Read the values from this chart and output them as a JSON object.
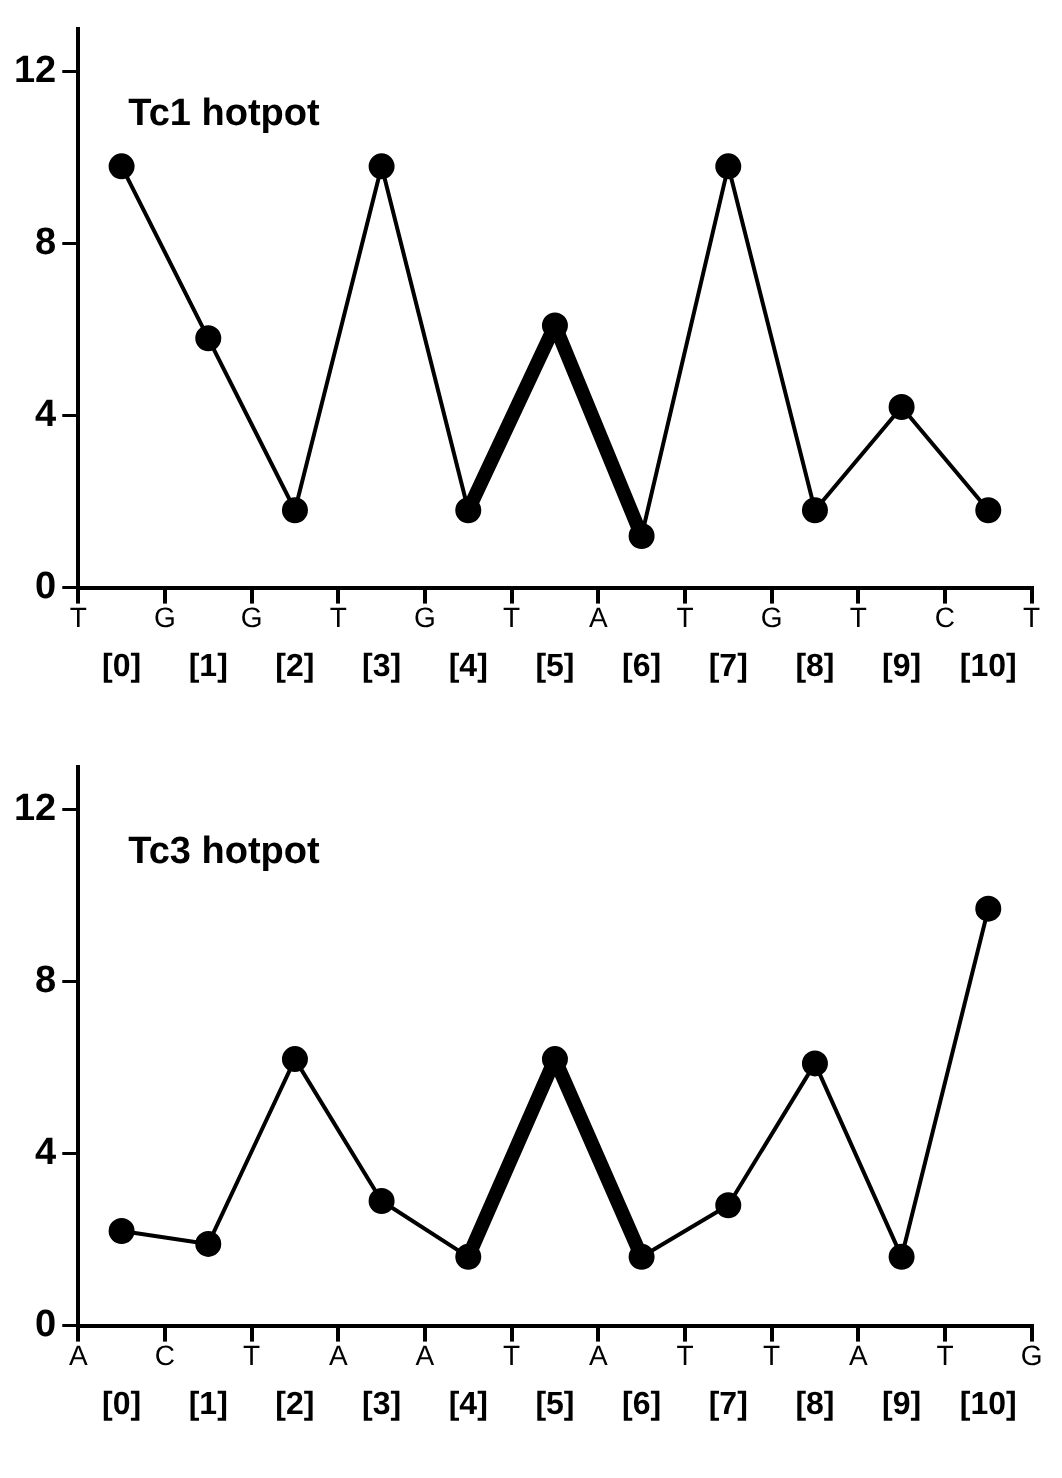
{
  "chart_data": [
    {
      "type": "line",
      "title": "Tc1 hotpot",
      "ylim": [
        0,
        13
      ],
      "yticks": [
        0,
        4,
        8,
        12
      ],
      "categories": [
        "[0]",
        "[1]",
        "[2]",
        "[3]",
        "[4]",
        "[5]",
        "[6]",
        "[7]",
        "[8]",
        "[9]",
        "[10]"
      ],
      "annotations": [
        "T",
        "G",
        "G",
        "T",
        "G",
        "T",
        "A",
        "T",
        "G",
        "T",
        "C",
        "T"
      ],
      "grid": false,
      "legend": false,
      "series": [
        {
          "color": "#000000",
          "marker": "circle",
          "values": [
            9.8,
            5.8,
            1.8,
            9.8,
            1.8,
            6.1,
            1.2,
            9.8,
            1.8,
            4.2,
            1.8
          ]
        },
        {
          "color": "#000000",
          "marker": "none",
          "values": [
            null,
            null,
            null,
            null,
            1.8,
            6.1,
            1.2,
            null,
            null,
            null,
            null
          ]
        }
      ]
    },
    {
      "type": "line",
      "title": "Tc3 hotpot",
      "ylim": [
        0,
        13
      ],
      "yticks": [
        0,
        4,
        8,
        12
      ],
      "categories": [
        "[0]",
        "[1]",
        "[2]",
        "[3]",
        "[4]",
        "[5]",
        "[6]",
        "[7]",
        "[8]",
        "[9]",
        "[10]"
      ],
      "annotations": [
        "A",
        "C",
        "T",
        "A",
        "A",
        "T",
        "A",
        "T",
        "T",
        "A",
        "T",
        "G"
      ],
      "grid": false,
      "legend": false,
      "series": [
        {
          "color": "#000000",
          "marker": "circle",
          "values": [
            2.2,
            1.9,
            6.2,
            2.9,
            1.6,
            6.2,
            1.6,
            2.8,
            6.1,
            1.6,
            9.7
          ]
        },
        {
          "color": "#000000",
          "marker": "none",
          "values": [
            null,
            null,
            null,
            null,
            1.6,
            6.2,
            1.6,
            null,
            null,
            null,
            null
          ]
        }
      ]
    }
  ]
}
